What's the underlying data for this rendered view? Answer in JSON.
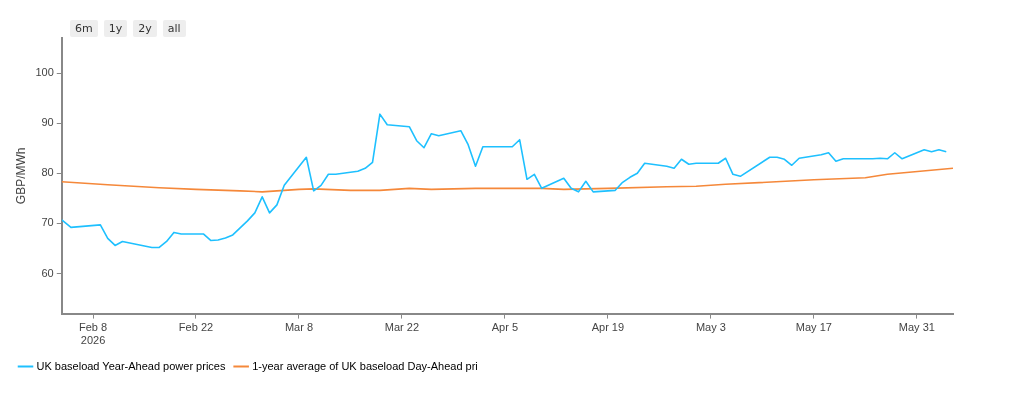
{
  "chart_data": {
    "type": "line",
    "ylabel": "GBP/MWh",
    "legend": "bottom",
    "grid": false,
    "marker": "none",
    "annotations": [
      "6m",
      "1y",
      "2y",
      "all"
    ],
    "xlim": [
      "2026-02-03T18:00",
      "2026-06-04T22:00"
    ],
    "xticks": [
      {
        "value": "2026-02-08",
        "label": "Feb 8\n2026"
      },
      {
        "value": "2026-02-22",
        "label": "Feb 22"
      },
      {
        "value": "2026-03-08",
        "label": "Mar 8"
      },
      {
        "value": "2026-03-22",
        "label": "Mar 22"
      },
      {
        "value": "2026-04-05",
        "label": "Apr 5"
      },
      {
        "value": "2026-04-19",
        "label": "Apr 19"
      },
      {
        "value": "2026-05-03",
        "label": "May 3"
      },
      {
        "value": "2026-05-17",
        "label": "May 17"
      },
      {
        "value": "2026-05-31",
        "label": "May 31"
      }
    ],
    "ylim": [
      52,
      107
    ],
    "yticks": [
      60,
      70,
      80,
      90,
      100
    ],
    "series": [
      {
        "name": "UK baseload Year-Ahead power prices",
        "color": "#1ec0ff",
        "x": [
          "2026-02-03T18:00",
          "2026-02-05",
          "2026-02-09",
          "2026-02-10",
          "2026-02-11",
          "2026-02-12",
          "2026-02-16",
          "2026-02-17",
          "2026-02-18",
          "2026-02-19",
          "2026-02-20",
          "2026-02-23",
          "2026-02-24",
          "2026-02-25",
          "2026-02-26",
          "2026-02-27",
          "2026-03-01",
          "2026-03-02",
          "2026-03-03",
          "2026-03-04",
          "2026-03-05",
          "2026-03-06",
          "2026-03-09",
          "2026-03-10",
          "2026-03-11",
          "2026-03-12",
          "2026-03-13",
          "2026-03-16",
          "2026-03-17",
          "2026-03-18",
          "2026-03-19",
          "2026-03-20",
          "2026-03-23",
          "2026-03-24",
          "2026-03-25",
          "2026-03-26",
          "2026-03-27",
          "2026-03-30",
          "2026-03-31",
          "2026-04-01",
          "2026-04-02",
          "2026-04-06",
          "2026-04-07",
          "2026-04-08",
          "2026-04-09",
          "2026-04-10",
          "2026-04-13",
          "2026-04-14",
          "2026-04-15",
          "2026-04-16",
          "2026-04-17",
          "2026-04-20",
          "2026-04-21",
          "2026-04-22",
          "2026-04-23",
          "2026-04-24",
          "2026-04-27",
          "2026-04-28",
          "2026-04-29",
          "2026-04-30",
          "2026-05-01",
          "2026-05-04",
          "2026-05-05",
          "2026-05-06",
          "2026-05-07",
          "2026-05-11",
          "2026-05-12",
          "2026-05-13",
          "2026-05-14",
          "2026-05-15",
          "2026-05-18",
          "2026-05-19",
          "2026-05-20",
          "2026-05-21",
          "2026-05-25",
          "2026-05-26",
          "2026-05-27",
          "2026-05-28",
          "2026-05-29",
          "2026-06-01",
          "2026-06-02",
          "2026-06-03",
          "2026-06-04"
        ],
        "values": [
          70.7,
          69.2,
          69.7,
          67.0,
          65.6,
          66.4,
          65.2,
          65.2,
          66.4,
          68.2,
          67.9,
          67.9,
          66.6,
          66.7,
          67.1,
          67.7,
          70.5,
          72.1,
          75.3,
          72.1,
          73.7,
          77.6,
          83.2,
          76.5,
          77.6,
          79.8,
          79.8,
          80.4,
          81.0,
          82.2,
          91.8,
          89.7,
          89.3,
          86.5,
          85.1,
          87.9,
          87.5,
          88.5,
          85.7,
          81.4,
          85.3,
          85.3,
          86.7,
          78.8,
          79.8,
          77.0,
          79.0,
          77.0,
          76.3,
          78.4,
          76.3,
          76.6,
          78.2,
          79.2,
          80.0,
          82.0,
          81.4,
          81.0,
          82.8,
          81.8,
          82.0,
          82.0,
          83.0,
          79.8,
          79.4,
          83.2,
          83.2,
          82.8,
          81.6,
          83.0,
          83.7,
          84.1,
          82.4,
          82.9,
          82.9,
          83.0,
          82.9,
          84.1,
          82.9,
          84.7,
          84.3,
          84.7,
          84.3
        ]
      },
      {
        "name": "1-year average of UK baseload Day-Ahead pri",
        "color": "#f5883a",
        "x": [
          "2026-02-03T18:00",
          "2026-02-10",
          "2026-02-17",
          "2026-02-22",
          "2026-02-28",
          "2026-03-03",
          "2026-03-08",
          "2026-03-10",
          "2026-03-15",
          "2026-03-19",
          "2026-03-23",
          "2026-03-26",
          "2026-04-01",
          "2026-04-10",
          "2026-04-13",
          "2026-04-19",
          "2026-04-27",
          "2026-05-01",
          "2026-05-05",
          "2026-05-17",
          "2026-05-24",
          "2026-05-27",
          "2026-06-04T22:00"
        ],
        "values": [
          78.3,
          77.7,
          77.1,
          76.8,
          76.5,
          76.3,
          76.8,
          76.9,
          76.6,
          76.6,
          77.0,
          76.8,
          77.0,
          77.0,
          76.8,
          77.0,
          77.3,
          77.4,
          77.8,
          78.7,
          79.1,
          79.8,
          81.0
        ]
      }
    ]
  }
}
